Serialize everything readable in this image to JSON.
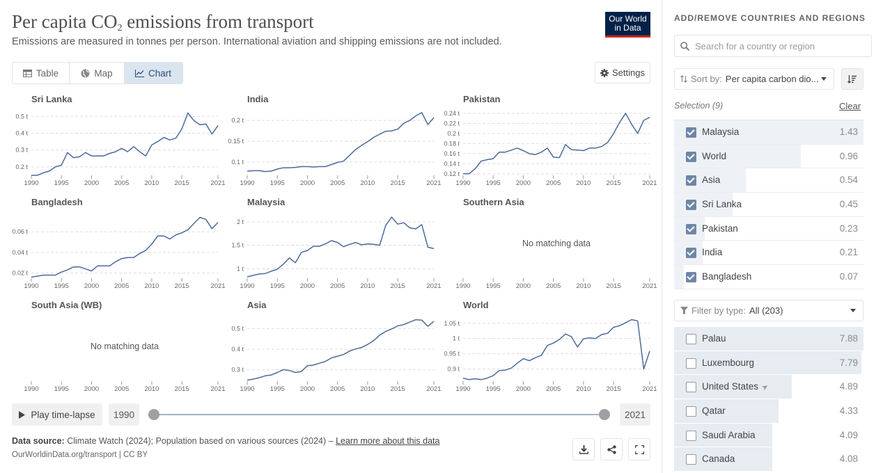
{
  "header": {
    "title_main": "Per capita CO",
    "title_sub": "2",
    "title_rest": " emissions from transport",
    "subtitle": "Emissions are measured in tonnes per person. International aviation and shipping emissions are not included.",
    "logo_line1": "Our World",
    "logo_line2": "in Data"
  },
  "tabs": [
    {
      "label": "Table",
      "icon": "table-icon",
      "active": false
    },
    {
      "label": "Map",
      "icon": "globe-icon",
      "active": false
    },
    {
      "label": "Chart",
      "icon": "line-chart-icon",
      "active": true
    }
  ],
  "settings_label": "Settings",
  "no_data_text": "No matching data",
  "chart_data": [
    {
      "type": "line",
      "title": "Sri Lanka",
      "x": [
        1990,
        1991,
        1992,
        1993,
        1994,
        1995,
        1996,
        1997,
        1998,
        1999,
        2000,
        2001,
        2002,
        2003,
        2004,
        2005,
        2006,
        2007,
        2008,
        2009,
        2010,
        2011,
        2012,
        2013,
        2014,
        2015,
        2016,
        2017,
        2018,
        2019,
        2020,
        2021
      ],
      "y": [
        0.15,
        0.15,
        0.165,
        0.175,
        0.2,
        0.21,
        0.285,
        0.255,
        0.26,
        0.285,
        0.265,
        0.265,
        0.265,
        0.28,
        0.29,
        0.31,
        0.29,
        0.32,
        0.29,
        0.265,
        0.33,
        0.35,
        0.375,
        0.36,
        0.37,
        0.425,
        0.52,
        0.475,
        0.45,
        0.455,
        0.395,
        0.445
      ],
      "ylim": [
        0.15,
        0.53
      ],
      "yticks": [
        0.2,
        0.3,
        0.4,
        0.5
      ],
      "ytick_labels": [
        "0.2 t",
        "0.3 t",
        "0.4 t",
        "0.5 t"
      ],
      "no_data": false
    },
    {
      "type": "line",
      "title": "India",
      "x": [
        1990,
        1991,
        1992,
        1993,
        1994,
        1995,
        1996,
        1997,
        1998,
        1999,
        2000,
        2001,
        2002,
        2003,
        2004,
        2005,
        2006,
        2007,
        2008,
        2009,
        2010,
        2011,
        2012,
        2013,
        2014,
        2015,
        2016,
        2017,
        2018,
        2019,
        2020,
        2021
      ],
      "y": [
        0.078,
        0.079,
        0.079,
        0.077,
        0.078,
        0.083,
        0.086,
        0.086,
        0.087,
        0.089,
        0.089,
        0.088,
        0.089,
        0.089,
        0.094,
        0.099,
        0.102,
        0.116,
        0.13,
        0.14,
        0.149,
        0.159,
        0.167,
        0.174,
        0.175,
        0.179,
        0.193,
        0.2,
        0.211,
        0.219,
        0.19,
        0.207
      ],
      "ylim": [
        0.068,
        0.222
      ],
      "yticks": [
        0.1,
        0.15,
        0.2
      ],
      "ytick_labels": [
        "0.1 t",
        "0.15 t",
        "0.2 t"
      ],
      "no_data": false
    },
    {
      "type": "line",
      "title": "Pakistan",
      "x": [
        1990,
        1991,
        1992,
        1993,
        1994,
        1995,
        1996,
        1997,
        1998,
        1999,
        2000,
        2001,
        2002,
        2003,
        2004,
        2005,
        2006,
        2007,
        2008,
        2009,
        2010,
        2011,
        2012,
        2013,
        2014,
        2015,
        2016,
        2017,
        2018,
        2019,
        2020,
        2021
      ],
      "y": [
        0.12,
        0.12,
        0.13,
        0.145,
        0.148,
        0.15,
        0.163,
        0.163,
        0.167,
        0.171,
        0.166,
        0.16,
        0.158,
        0.163,
        0.171,
        0.153,
        0.152,
        0.178,
        0.168,
        0.167,
        0.166,
        0.171,
        0.171,
        0.174,
        0.182,
        0.2,
        0.222,
        0.24,
        0.218,
        0.2,
        0.226,
        0.232
      ],
      "ylim": [
        0.117,
        0.244
      ],
      "yticks": [
        0.12,
        0.14,
        0.16,
        0.18,
        0.2,
        0.22,
        0.24
      ],
      "ytick_labels": [
        "0.12 t",
        "0.14 t",
        "0.16 t",
        "0.18 t",
        "0.2 t",
        "0.22 t",
        "0.24 t"
      ],
      "no_data": false
    },
    {
      "type": "line",
      "title": "Bangladesh",
      "x": [
        1990,
        1991,
        1992,
        1993,
        1994,
        1995,
        1996,
        1997,
        1998,
        1999,
        2000,
        2001,
        2002,
        2003,
        2004,
        2005,
        2006,
        2007,
        2008,
        2009,
        2010,
        2011,
        2012,
        2013,
        2014,
        2015,
        2016,
        2017,
        2018,
        2019,
        2020,
        2021
      ],
      "y": [
        0.016,
        0.017,
        0.018,
        0.018,
        0.018,
        0.021,
        0.023,
        0.026,
        0.026,
        0.024,
        0.022,
        0.027,
        0.027,
        0.027,
        0.031,
        0.034,
        0.035,
        0.035,
        0.039,
        0.042,
        0.048,
        0.056,
        0.056,
        0.053,
        0.057,
        0.059,
        0.062,
        0.068,
        0.074,
        0.072,
        0.063,
        0.069
      ],
      "ylim": [
        0.015,
        0.077
      ],
      "yticks": [
        0.02,
        0.04,
        0.06
      ],
      "ytick_labels": [
        "0.02 t",
        "0.04 t",
        "0.06 t"
      ],
      "no_data": false
    },
    {
      "type": "line",
      "title": "Malaysia",
      "x": [
        1990,
        1991,
        1992,
        1993,
        1994,
        1995,
        1996,
        1997,
        1998,
        1999,
        2000,
        2001,
        2002,
        2003,
        2004,
        2005,
        2006,
        2007,
        2008,
        2009,
        2010,
        2011,
        2012,
        2013,
        2014,
        2015,
        2016,
        2017,
        2018,
        2019,
        2020,
        2021
      ],
      "y": [
        0.83,
        0.86,
        0.89,
        0.9,
        0.95,
        0.99,
        1.1,
        1.23,
        1.13,
        1.35,
        1.39,
        1.48,
        1.48,
        1.53,
        1.6,
        1.56,
        1.47,
        1.52,
        1.56,
        1.51,
        1.53,
        1.52,
        1.5,
        1.92,
        2.1,
        1.95,
        1.98,
        1.87,
        1.85,
        1.94,
        1.46,
        1.43
      ],
      "ylim": [
        0.8,
        2.16
      ],
      "yticks": [
        1,
        1.5,
        2
      ],
      "ytick_labels": [
        "1 t",
        "1.5 t",
        "2 t"
      ],
      "no_data": false
    },
    {
      "type": "line",
      "title": "Southern Asia",
      "x": [],
      "y": [],
      "no_data": true
    },
    {
      "type": "line",
      "title": "South Asia (WB)",
      "x": [],
      "y": [],
      "no_data": true
    },
    {
      "type": "line",
      "title": "Asia",
      "x": [
        1990,
        1991,
        1992,
        1993,
        1994,
        1995,
        1996,
        1997,
        1998,
        1999,
        2000,
        2001,
        2002,
        2003,
        2004,
        2005,
        2006,
        2007,
        2008,
        2009,
        2010,
        2011,
        2012,
        2013,
        2014,
        2015,
        2016,
        2017,
        2018,
        2019,
        2020,
        2021
      ],
      "y": [
        0.25,
        0.255,
        0.262,
        0.271,
        0.275,
        0.287,
        0.301,
        0.297,
        0.287,
        0.292,
        0.32,
        0.323,
        0.332,
        0.341,
        0.358,
        0.366,
        0.374,
        0.391,
        0.401,
        0.408,
        0.423,
        0.441,
        0.468,
        0.486,
        0.498,
        0.513,
        0.519,
        0.531,
        0.543,
        0.541,
        0.511,
        0.535
      ],
      "ylim": [
        0.245,
        0.555
      ],
      "yticks": [
        0.3,
        0.4,
        0.5
      ],
      "ytick_labels": [
        "0.3 t",
        "0.4 t",
        "0.5 t"
      ],
      "no_data": false
    },
    {
      "type": "line",
      "title": "World",
      "x": [
        1990,
        1991,
        1992,
        1993,
        1994,
        1995,
        1996,
        1997,
        1998,
        1999,
        2000,
        2001,
        2002,
        2003,
        2004,
        2005,
        2006,
        2007,
        2008,
        2009,
        2010,
        2011,
        2012,
        2013,
        2014,
        2015,
        2016,
        2017,
        2018,
        2019,
        2020,
        2021
      ],
      "y": [
        0.87,
        0.865,
        0.868,
        0.865,
        0.87,
        0.878,
        0.895,
        0.896,
        0.903,
        0.919,
        0.934,
        0.927,
        0.937,
        0.945,
        0.977,
        0.985,
        0.997,
        1.015,
        1.006,
        0.972,
        0.999,
        1.002,
        1.0,
        1.013,
        1.017,
        1.037,
        1.042,
        1.052,
        1.062,
        1.058,
        0.9,
        0.959
      ],
      "ylim": [
        0.86,
        1.07
      ],
      "yticks": [
        0.9,
        0.95,
        1,
        1.05
      ],
      "ytick_labels": [
        "0.9 t",
        "0.95 t",
        "1 t",
        "1.05 t"
      ],
      "no_data": false
    }
  ],
  "x_tick_labels": [
    "1990",
    "1995",
    "2000",
    "2005",
    "2010",
    "2015",
    "2021"
  ],
  "line_color": "#4c6a9c",
  "timeline": {
    "play_label": "Play time-lapse",
    "start_year": "1990",
    "end_year": "2021"
  },
  "footer": {
    "source_prefix": "Data source:",
    "source_text": " Climate Watch (2024); Population based on various sources (2024) – ",
    "learn_more": "Learn more about this data",
    "url": "OurWorldinData.org/transport | CC BY"
  },
  "sidebar": {
    "heading": "ADD/REMOVE COUNTRIES AND REGIONS",
    "search_placeholder": "Search for a country or region",
    "sort_prefix": "Sort by:",
    "sort_value": "Per capita carbon dio...",
    "selection_label": "Selection (9)",
    "clear_label": "Clear",
    "selected": [
      {
        "name": "Malaysia",
        "value": "1.43",
        "share": 1.0
      },
      {
        "name": "World",
        "value": "0.96",
        "share": 0.67
      },
      {
        "name": "Asia",
        "value": "0.54",
        "share": 0.38
      },
      {
        "name": "Sri Lanka",
        "value": "0.45",
        "share": 0.31
      },
      {
        "name": "Pakistan",
        "value": "0.23",
        "share": 0.16
      },
      {
        "name": "India",
        "value": "0.21",
        "share": 0.15
      },
      {
        "name": "Bangladesh",
        "value": "0.07",
        "share": 0.05
      }
    ],
    "filter_prefix": "Filter by type:",
    "filter_value": "All (203)",
    "unselected": [
      {
        "name": "Palau",
        "value": "7.88",
        "share": 1.0
      },
      {
        "name": "Luxembourg",
        "value": "7.79",
        "share": 0.99
      },
      {
        "name": "United States",
        "value": "4.89",
        "share": 0.62,
        "locate": true
      },
      {
        "name": "Qatar",
        "value": "4.33",
        "share": 0.55
      },
      {
        "name": "Saudi Arabia",
        "value": "4.09",
        "share": 0.52
      },
      {
        "name": "Canada",
        "value": "4.08",
        "share": 0.52
      }
    ]
  }
}
